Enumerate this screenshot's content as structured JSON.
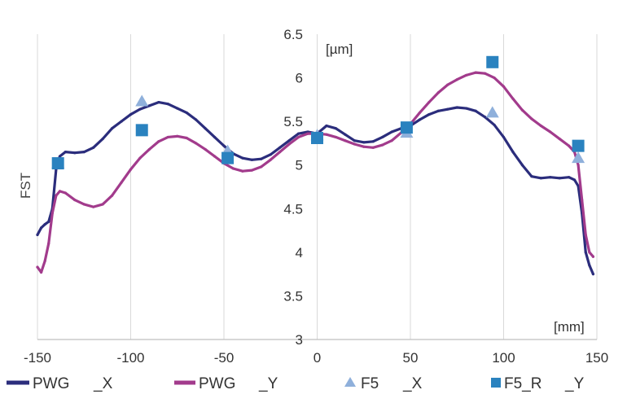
{
  "chart_data": {
    "type": "line",
    "title": "",
    "xlabel": "",
    "ylabel": "FST",
    "x_unit": "[mm]",
    "y_unit": "[µm]",
    "xlim": [
      -150,
      150
    ],
    "ylim": [
      3,
      6.5
    ],
    "xticks": [
      "-150",
      "-100",
      "-50",
      "0",
      "50",
      "100",
      "150"
    ],
    "yticks": [
      "3",
      "3.5",
      "4",
      "4.5",
      "5",
      "5.5",
      "6",
      "6.5"
    ],
    "grid": "vertical",
    "legend_position": "bottom",
    "series": [
      {
        "name": "PWG _X",
        "legend_parts": [
          "PWG",
          "_X"
        ],
        "style": "line",
        "color": "#2b2d7c",
        "x": [
          -150,
          -148,
          -146,
          -144,
          -142,
          -140,
          -138,
          -135,
          -130,
          -125,
          -120,
          -115,
          -110,
          -105,
          -100,
          -95,
          -90,
          -85,
          -80,
          -75,
          -70,
          -65,
          -60,
          -55,
          -50,
          -45,
          -40,
          -35,
          -30,
          -25,
          -20,
          -15,
          -10,
          -5,
          0,
          5,
          10,
          15,
          20,
          25,
          30,
          35,
          40,
          45,
          50,
          55,
          60,
          65,
          70,
          75,
          80,
          85,
          90,
          95,
          100,
          105,
          110,
          115,
          120,
          125,
          130,
          135,
          138,
          140,
          142,
          144,
          146,
          148
        ],
        "y": [
          4.2,
          4.28,
          4.32,
          4.35,
          4.5,
          4.95,
          5.1,
          5.15,
          5.14,
          5.15,
          5.2,
          5.3,
          5.42,
          5.5,
          5.58,
          5.64,
          5.68,
          5.72,
          5.7,
          5.65,
          5.6,
          5.52,
          5.42,
          5.32,
          5.22,
          5.13,
          5.08,
          5.06,
          5.07,
          5.12,
          5.2,
          5.28,
          5.36,
          5.38,
          5.36,
          5.45,
          5.42,
          5.35,
          5.28,
          5.26,
          5.27,
          5.32,
          5.38,
          5.42,
          5.45,
          5.52,
          5.58,
          5.62,
          5.64,
          5.66,
          5.65,
          5.62,
          5.55,
          5.46,
          5.32,
          5.15,
          5.0,
          4.87,
          4.85,
          4.86,
          4.85,
          4.86,
          4.83,
          4.76,
          4.45,
          4.0,
          3.85,
          3.75
        ]
      },
      {
        "name": "PWG _Y",
        "legend_parts": [
          "PWG",
          "_Y"
        ],
        "style": "line",
        "color": "#a23b8c",
        "x": [
          -150,
          -148,
          -146,
          -144,
          -142,
          -140,
          -138,
          -135,
          -130,
          -125,
          -120,
          -115,
          -110,
          -105,
          -100,
          -95,
          -90,
          -85,
          -80,
          -75,
          -70,
          -65,
          -60,
          -55,
          -50,
          -45,
          -40,
          -35,
          -30,
          -25,
          -20,
          -15,
          -10,
          -5,
          0,
          5,
          10,
          15,
          20,
          25,
          30,
          35,
          40,
          45,
          50,
          55,
          60,
          65,
          70,
          75,
          80,
          85,
          90,
          95,
          100,
          105,
          110,
          115,
          120,
          125,
          130,
          135,
          138,
          140,
          142,
          144,
          146,
          148
        ],
        "y": [
          3.83,
          3.77,
          3.9,
          4.1,
          4.45,
          4.65,
          4.7,
          4.68,
          4.6,
          4.55,
          4.52,
          4.55,
          4.65,
          4.8,
          4.95,
          5.08,
          5.18,
          5.27,
          5.32,
          5.33,
          5.31,
          5.25,
          5.18,
          5.1,
          5.02,
          4.96,
          4.93,
          4.94,
          4.98,
          5.06,
          5.15,
          5.24,
          5.32,
          5.36,
          5.36,
          5.35,
          5.32,
          5.28,
          5.24,
          5.21,
          5.2,
          5.23,
          5.28,
          5.37,
          5.47,
          5.6,
          5.72,
          5.83,
          5.92,
          5.98,
          6.03,
          6.06,
          6.05,
          6.0,
          5.9,
          5.76,
          5.63,
          5.53,
          5.45,
          5.38,
          5.3,
          5.22,
          5.15,
          5.0,
          4.6,
          4.2,
          4.0,
          3.95
        ]
      },
      {
        "name": "F5 _X",
        "legend_parts": [
          "F5",
          "_X"
        ],
        "style": "triangle",
        "color": "#8fb0db",
        "x": [
          -139,
          -94,
          -48,
          0,
          48,
          94,
          140
        ],
        "y": [
          5.02,
          5.73,
          5.16,
          5.34,
          5.37,
          5.6,
          5.08
        ]
      },
      {
        "name": "F5_R _Y",
        "legend_parts": [
          "F5_R",
          "_Y"
        ],
        "style": "square",
        "color": "#2a82bf",
        "x": [
          -139,
          -94,
          -48,
          0,
          48,
          94,
          140
        ],
        "y": [
          5.02,
          5.4,
          5.08,
          5.31,
          5.43,
          6.18,
          5.22
        ]
      }
    ]
  }
}
